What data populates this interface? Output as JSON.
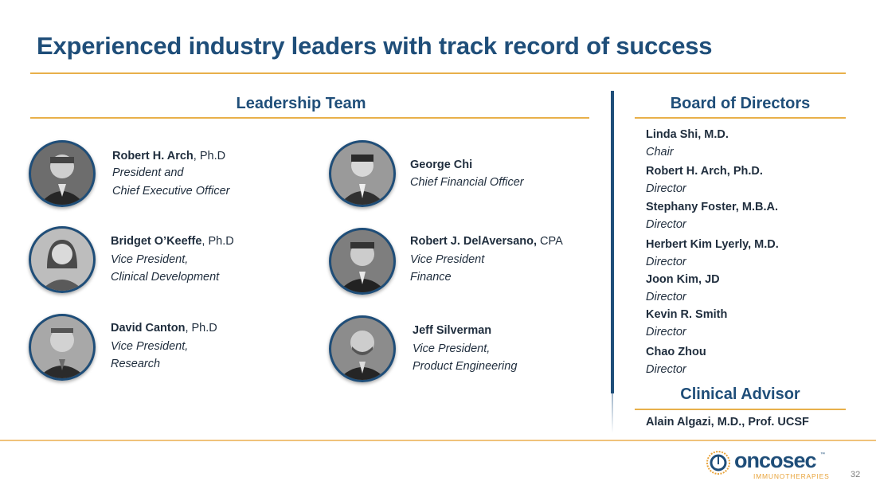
{
  "title": "Experienced industry leaders with track record of success",
  "leadership": {
    "heading": "Leadership Team",
    "people": [
      {
        "name": "Robert H. Arch",
        "credential": ", Ph.D",
        "role1": "President and",
        "role2": "Chief Executive Officer"
      },
      {
        "name": "George Chi",
        "credential": "",
        "role1": "Chief Financial Officer",
        "role2": ""
      },
      {
        "name": "Bridget O’Keeffe",
        "credential": ", Ph.D",
        "role1": "Vice President,",
        "role2": "Clinical Development"
      },
      {
        "name": "Robert J. DelAversano,",
        "credential": " CPA",
        "role1": "Vice President",
        "role2": "Finance"
      },
      {
        "name": "David Canton",
        "credential": ", Ph.D",
        "role1": "Vice President,",
        "role2": "Research"
      },
      {
        "name": "Jeff Silverman",
        "credential": "",
        "role1": "Vice President,",
        "role2": "Product Engineering"
      }
    ]
  },
  "board": {
    "heading": "Board of Directors",
    "members": [
      {
        "name": "Linda Shi, M.D.",
        "role": "Chair"
      },
      {
        "name": "Robert H. Arch, Ph.D.",
        "role": "Director"
      },
      {
        "name": "Stephany Foster, M.B.A.",
        "role": "Director"
      },
      {
        "name": "Herbert Kim Lyerly, M.D.",
        "role": "Director"
      },
      {
        "name": "Joon Kim, JD",
        "role": "Director"
      },
      {
        "name": "Kevin R. Smith",
        "role": "Director"
      },
      {
        "name": "Chao Zhou",
        "role": "Director"
      }
    ]
  },
  "advisor": {
    "heading": "Clinical Advisor",
    "name": "Alain Algazi, M.D., Prof. UCSF"
  },
  "logo": {
    "text": "oncosec",
    "tm": "™",
    "subtitle": "IMMUNOTHERAPIES"
  },
  "page_number": "32",
  "colors": {
    "navy": "#1f4e79",
    "gold": "#e8b04a",
    "orange": "#e8a33a"
  }
}
